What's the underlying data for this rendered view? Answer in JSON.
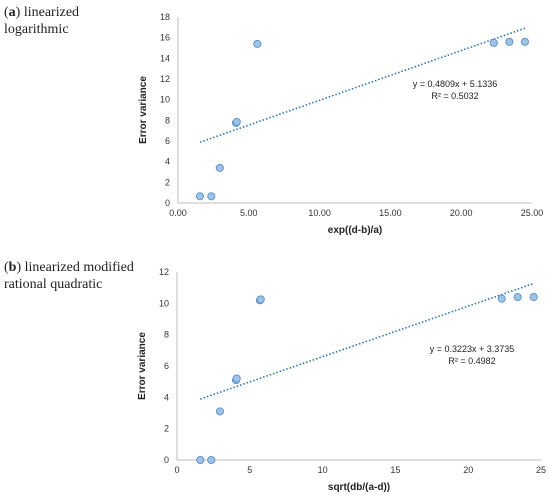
{
  "panels": [
    {
      "letter": "a",
      "rest": "linearized logarithmic"
    },
    {
      "letter": "b",
      "rest": "linearized modified rational quadratic"
    }
  ],
  "chart_data": [
    {
      "type": "scatter",
      "xlabel": "exp((d-b)/a)",
      "ylabel": "Error variance",
      "xlim": [
        0,
        25
      ],
      "ylim": [
        0,
        18
      ],
      "xticks": [
        "0.00",
        "5.00",
        "10.00",
        "15.00",
        "20.00",
        "25.00"
      ],
      "yticks": [
        "0",
        "2",
        "4",
        "6",
        "8",
        "10",
        "12",
        "14",
        "16",
        "18"
      ],
      "points": [
        {
          "x": 1.55,
          "y": 0.65
        },
        {
          "x": 2.35,
          "y": 0.65
        },
        {
          "x": 2.95,
          "y": 3.4
        },
        {
          "x": 4.1,
          "y": 7.75
        },
        {
          "x": 4.15,
          "y": 7.85
        },
        {
          "x": 5.6,
          "y": 15.4
        },
        {
          "x": 22.3,
          "y": 15.5
        },
        {
          "x": 23.4,
          "y": 15.6
        },
        {
          "x": 24.5,
          "y": 15.6
        }
      ],
      "trendline": {
        "slope": 0.4809,
        "intercept": 5.1336,
        "x_range": [
          1.55,
          24.5
        ],
        "equation": "y = 0.4809x + 5.1336",
        "r2": "R² = 0.5032"
      },
      "grid": false,
      "marker_color": "#9dc3e6",
      "trend_color": "#2e75b6"
    },
    {
      "type": "scatter",
      "xlabel": "sqrt(db/(a-d))",
      "ylabel": "Error variance",
      "xlim": [
        0,
        25
      ],
      "ylim": [
        0,
        12
      ],
      "xticks": [
        "0",
        "5",
        "10",
        "15",
        "20",
        "25"
      ],
      "yticks": [
        "0",
        "2",
        "4",
        "6",
        "8",
        "10",
        "12"
      ],
      "points": [
        {
          "x": 1.6,
          "y": 0
        },
        {
          "x": 2.35,
          "y": 0
        },
        {
          "x": 2.95,
          "y": 3.1
        },
        {
          "x": 4.05,
          "y": 5.1
        },
        {
          "x": 4.1,
          "y": 5.2
        },
        {
          "x": 5.7,
          "y": 10.2
        },
        {
          "x": 5.75,
          "y": 10.25
        },
        {
          "x": 22.3,
          "y": 10.3
        },
        {
          "x": 23.4,
          "y": 10.4
        },
        {
          "x": 24.5,
          "y": 10.4
        }
      ],
      "trendline": {
        "slope": 0.3223,
        "intercept": 3.3735,
        "x_range": [
          1.6,
          24.5
        ],
        "equation": "y = 0.3223x + 3.3735",
        "r2": "R² = 0.4982"
      },
      "grid": false,
      "marker_color": "#9dc3e6",
      "trend_color": "#2e75b6"
    }
  ]
}
